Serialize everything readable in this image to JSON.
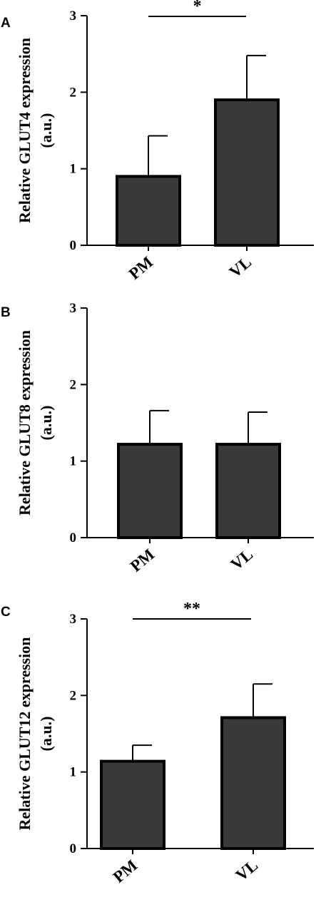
{
  "chart_data": [
    {
      "type": "bar",
      "panel_label": "A",
      "categories": [
        "PM",
        "VL"
      ],
      "values": [
        0.9,
        1.9
      ],
      "error_upper": [
        1.43,
        2.48
      ],
      "ylabel_line1": "Relative GLUT4 expression",
      "ylabel_line2": "(a.u.)",
      "ylim": [
        0,
        3
      ],
      "yticks": [
        "0",
        "1",
        "2",
        "3"
      ],
      "significance": "*",
      "bar_color": "#3a3a3a",
      "grid": false
    },
    {
      "type": "bar",
      "panel_label": "B",
      "categories": [
        "PM",
        "VL"
      ],
      "values": [
        1.22,
        1.22
      ],
      "error_upper": [
        1.66,
        1.64
      ],
      "ylabel_line1": "Relative GLUT8 expression",
      "ylabel_line2": "(a.u.)",
      "ylim": [
        0,
        3
      ],
      "yticks": [
        "0",
        "1",
        "2",
        "3"
      ],
      "significance": "",
      "bar_color": "#3a3a3a",
      "grid": false
    },
    {
      "type": "bar",
      "panel_label": "C",
      "categories": [
        "PM",
        "VL"
      ],
      "values": [
        1.14,
        1.71
      ],
      "error_upper": [
        1.35,
        2.15
      ],
      "ylabel_line1": "Relative GLUT12 expression",
      "ylabel_line2": "(a.u.)",
      "ylim": [
        0,
        3
      ],
      "yticks": [
        "0",
        "1",
        "2",
        "3"
      ],
      "significance": "**",
      "bar_color": "#3a3a3a",
      "grid": false
    }
  ]
}
